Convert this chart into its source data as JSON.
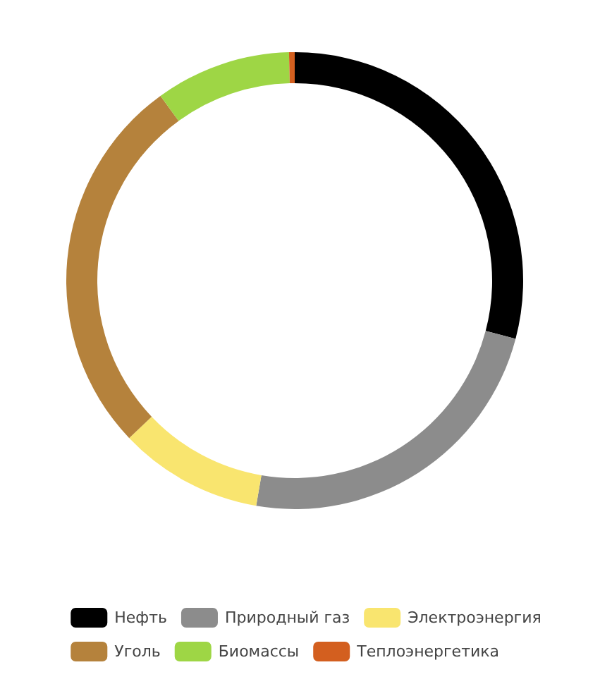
{
  "chart_data": {
    "type": "donut",
    "categories": [
      "Нефть",
      "Природный газ",
      "Электроэнергия",
      "Уголь",
      "Биомассы",
      "Теплоэнергетика"
    ],
    "values": [
      29.1,
      23.6,
      10.2,
      27.1,
      9.6,
      0.4
    ],
    "colors": [
      "#000000",
      "#8c8c8c",
      "#f9e56f",
      "#b5823c",
      "#9ed645",
      "#d35f1f"
    ],
    "legend": "bottom"
  }
}
